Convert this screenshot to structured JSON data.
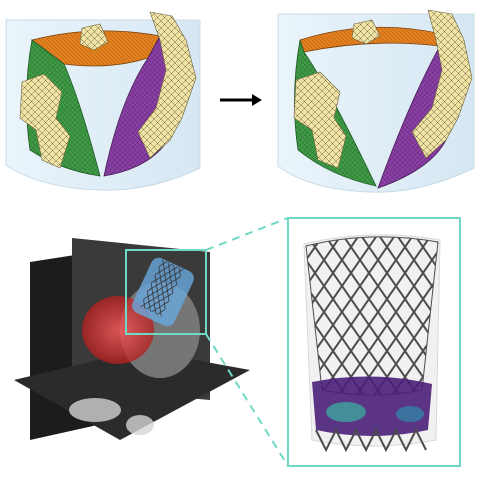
{
  "figure": {
    "arrow": "right-arrow",
    "colors": {
      "leaflet_top": "#e2801f",
      "leaflet_left": "#3f9a45",
      "leaflet_right": "#8a3fa4",
      "calcification": "#f1e3a4",
      "zoom_frame": "#6fd9c6",
      "stent": "#4d4d4d",
      "ct_overlay_red": "#e23a3a",
      "ct_overlay_blue": "#6aa9e0"
    },
    "panels": [
      {
        "name": "leaflets-closed-model",
        "content": "mesh-render"
      },
      {
        "name": "leaflets-open-model",
        "content": "mesh-render"
      },
      {
        "name": "ct-slices-with-implant",
        "content": "orthogonal-ct-slices"
      },
      {
        "name": "stent-zoom-render",
        "content": "stent-frame-render"
      }
    ]
  }
}
